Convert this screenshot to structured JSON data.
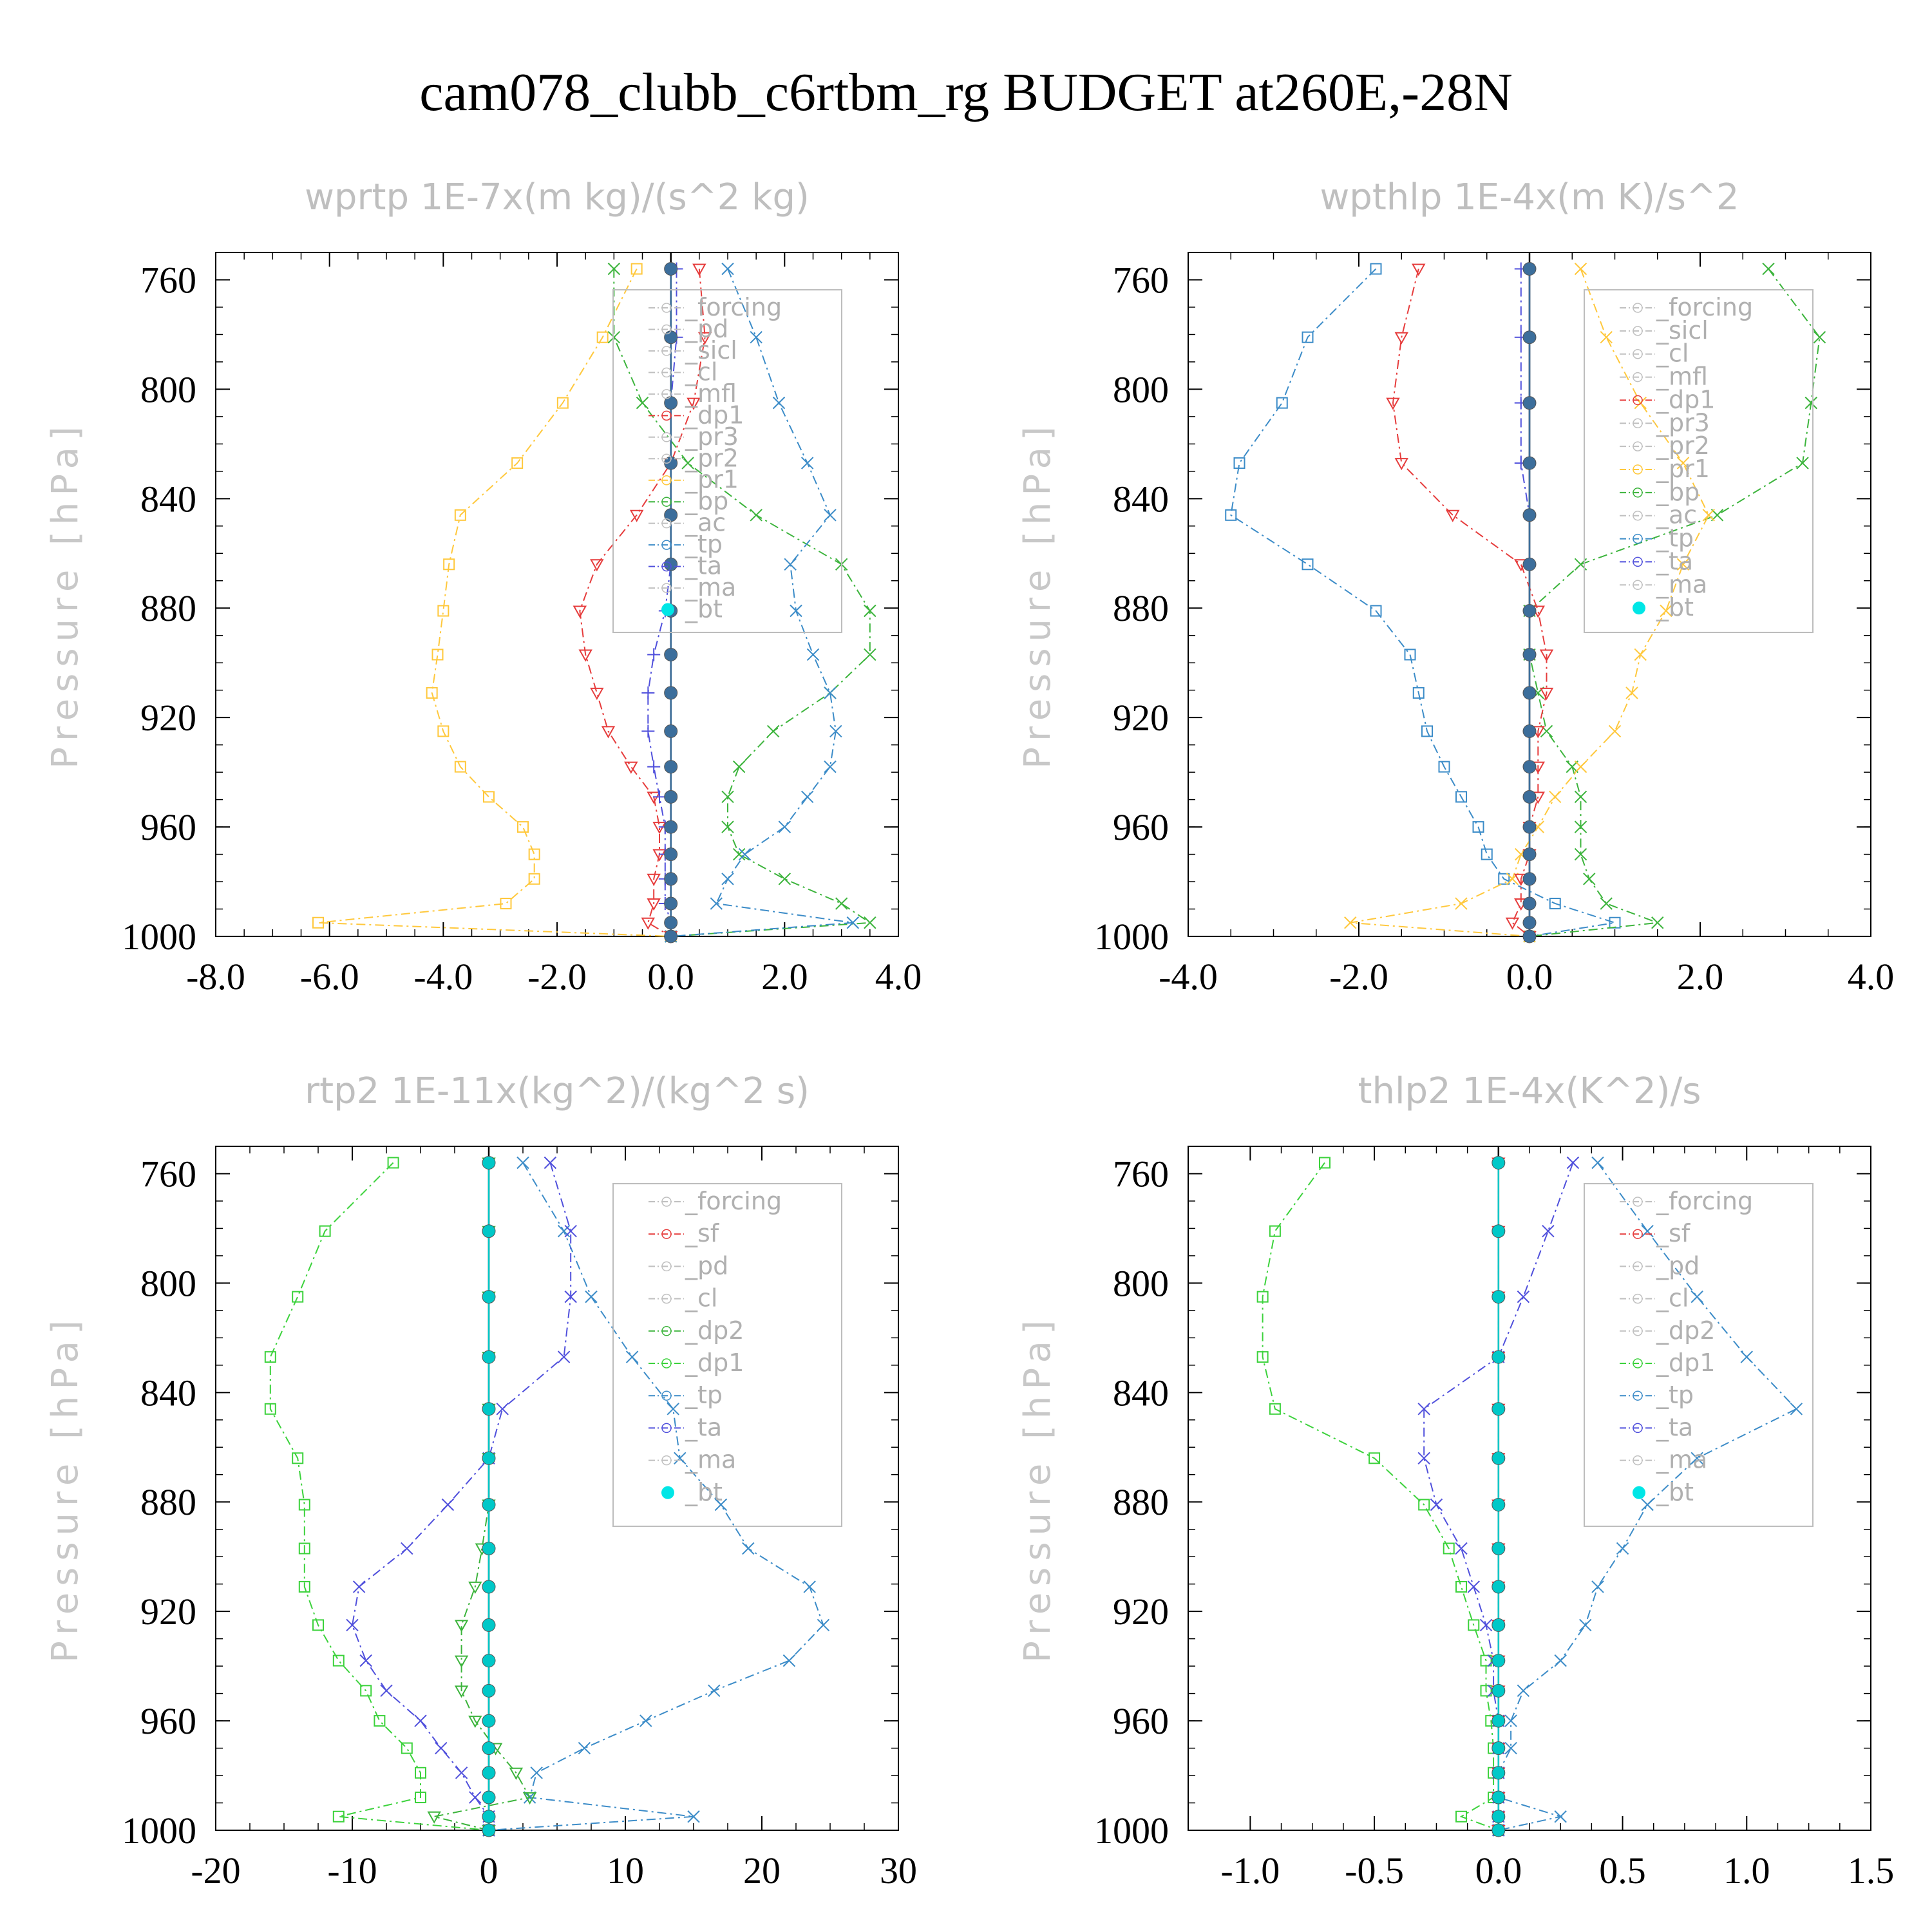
{
  "title": "cam078_clubb_c6rtbm_rg  BUDGET at260E,-28N",
  "ylabel": "Pressure [hPa]",
  "chart_data": [
    {
      "type": "line",
      "title": "wprtp  1E-7x(m kg)/(s^2 kg)",
      "ylabel": "Pressure [hPa]",
      "xlim": [
        -8,
        4
      ],
      "xticks": [
        "-8.0",
        "-6.0",
        "-4.0",
        "-2.0",
        "0.0",
        "2.0",
        "4.0"
      ],
      "xtick_values": [
        -8,
        -6,
        -4,
        -2,
        0,
        2,
        4
      ],
      "ylim": [
        750,
        1000
      ],
      "yticks": [
        "760",
        "800",
        "840",
        "880",
        "920",
        "960",
        "1000"
      ],
      "ytick_values": [
        760,
        800,
        840,
        880,
        920,
        960,
        1000
      ],
      "levels": [
        756,
        781,
        805,
        827,
        846,
        864,
        881,
        897,
        911,
        925,
        938,
        949,
        960,
        970,
        979,
        988,
        995,
        1000
      ],
      "legend": [
        "_forcing",
        "_pd",
        "_sicl",
        "_cl",
        "_mfl",
        "_dp1",
        "_pr3",
        "_pr2",
        "_pr1",
        "_bp",
        "_ac",
        "_tp",
        "_ta",
        "_ma",
        "_bt"
      ],
      "series": [
        {
          "name": "_pr1",
          "color": "#ffc83c",
          "values": [
            -0.6,
            -1.2,
            -1.9,
            -2.7,
            -3.7,
            -3.9,
            -4.0,
            -4.1,
            -4.2,
            -4.0,
            -3.7,
            -3.2,
            -2.6,
            -2.4,
            -2.4,
            -2.9,
            -6.2,
            0
          ]
        },
        {
          "name": "_bp",
          "color": "#3cb43c",
          "values": [
            -1.0,
            -1.0,
            -0.5,
            0.3,
            1.5,
            3.0,
            3.5,
            3.5,
            2.8,
            1.8,
            1.2,
            1.0,
            1.0,
            1.2,
            2.0,
            3.0,
            3.5,
            0
          ]
        },
        {
          "name": "_tp",
          "color": "#3c8cc8",
          "values": [
            1.0,
            1.5,
            1.9,
            2.4,
            2.8,
            2.1,
            2.2,
            2.5,
            2.8,
            2.9,
            2.8,
            2.4,
            2.0,
            1.3,
            1.0,
            0.8,
            3.2,
            0
          ]
        },
        {
          "name": "_dp1",
          "color": "#e63c3c",
          "values": [
            0.5,
            0.6,
            0.4,
            0.0,
            -0.6,
            -1.3,
            -1.6,
            -1.5,
            -1.3,
            -1.1,
            -0.7,
            -0.3,
            -0.2,
            -0.2,
            -0.3,
            -0.3,
            -0.4,
            0
          ]
        },
        {
          "name": "_ta",
          "color": "#5050dc",
          "values": [
            0.1,
            0.1,
            0.0,
            0.0,
            0.0,
            0.0,
            -0.1,
            -0.3,
            -0.4,
            -0.4,
            -0.3,
            -0.2,
            -0.1,
            -0.1,
            -0.1,
            -0.1,
            0.0,
            0
          ]
        },
        {
          "name": "_bt",
          "color": "#3c6e9b",
          "values": [
            0,
            0,
            0,
            0,
            0,
            0,
            0,
            0,
            0,
            0,
            0,
            0,
            0,
            0,
            0,
            0,
            0,
            0
          ]
        }
      ]
    },
    {
      "type": "line",
      "title": "wpthlp  1E-4x(m K)/s^2",
      "ylabel": "Pressure [hPa]",
      "xlim": [
        -4,
        4
      ],
      "xticks": [
        "-4.0",
        "-2.0",
        "0.0",
        "2.0",
        "4.0"
      ],
      "xtick_values": [
        -4,
        -2,
        0,
        2,
        4
      ],
      "ylim": [
        750,
        1000
      ],
      "yticks": [
        "760",
        "800",
        "840",
        "880",
        "920",
        "960",
        "1000"
      ],
      "ytick_values": [
        760,
        800,
        840,
        880,
        920,
        960,
        1000
      ],
      "levels": [
        756,
        781,
        805,
        827,
        846,
        864,
        881,
        897,
        911,
        925,
        938,
        949,
        960,
        970,
        979,
        988,
        995,
        1000
      ],
      "legend": [
        "_forcing",
        "_sicl",
        "_cl",
        "_mfl",
        "_dp1",
        "_pr3",
        "_pr2",
        "_pr1",
        "_bp",
        "_ac",
        "_tp",
        "_ta",
        "_ma",
        "_bt"
      ],
      "series": [
        {
          "name": "_tp",
          "color": "#3c8cc8",
          "values": [
            -1.8,
            -2.6,
            -2.9,
            -3.4,
            -3.5,
            -2.6,
            -1.8,
            -1.4,
            -1.3,
            -1.2,
            -1.0,
            -0.8,
            -0.6,
            -0.5,
            -0.3,
            0.3,
            1.0,
            0
          ]
        },
        {
          "name": "_bp",
          "color": "#3cb43c",
          "values": [
            2.8,
            3.4,
            3.3,
            3.2,
            2.2,
            0.6,
            0.0,
            0.0,
            0.1,
            0.2,
            0.5,
            0.6,
            0.6,
            0.6,
            0.7,
            0.9,
            1.5,
            0
          ]
        },
        {
          "name": "_pr1",
          "color": "#ffc83c",
          "values": [
            0.6,
            0.9,
            1.3,
            1.8,
            2.1,
            1.8,
            1.6,
            1.3,
            1.2,
            1.0,
            0.6,
            0.3,
            0.1,
            -0.1,
            -0.2,
            -0.8,
            -2.1,
            0
          ]
        },
        {
          "name": "_dp1",
          "color": "#e63c3c",
          "values": [
            -1.3,
            -1.5,
            -1.6,
            -1.5,
            -0.9,
            -0.1,
            0.1,
            0.2,
            0.2,
            0.1,
            0.1,
            0.1,
            0.0,
            0.0,
            -0.1,
            -0.1,
            -0.2,
            0
          ]
        },
        {
          "name": "_ta",
          "color": "#5050dc",
          "values": [
            -0.1,
            -0.1,
            -0.1,
            -0.1,
            0.0,
            0.0,
            0.0,
            0.0,
            0.0,
            0.0,
            0.0,
            0.0,
            0.0,
            0.0,
            0.0,
            0.0,
            0.0,
            0
          ]
        },
        {
          "name": "_bt",
          "color": "#3c6e9b",
          "values": [
            0,
            0,
            0,
            0,
            0,
            0,
            0,
            0,
            0,
            0,
            0,
            0,
            0,
            0,
            0,
            0,
            0,
            0
          ]
        }
      ]
    },
    {
      "type": "line",
      "title": "rtp2  1E-11x(kg^2)/(kg^2 s)",
      "ylabel": "Pressure [hPa]",
      "xlim": [
        -20,
        30
      ],
      "xticks": [
        "-20",
        "-10",
        "0",
        "10",
        "20",
        "30"
      ],
      "xtick_values": [
        -20,
        -10,
        0,
        10,
        20,
        30
      ],
      "ylim": [
        750,
        1000
      ],
      "yticks": [
        "760",
        "800",
        "840",
        "880",
        "920",
        "960",
        "1000"
      ],
      "ytick_values": [
        760,
        800,
        840,
        880,
        920,
        960,
        1000
      ],
      "levels": [
        756,
        781,
        805,
        827,
        846,
        864,
        881,
        897,
        911,
        925,
        938,
        949,
        960,
        970,
        979,
        988,
        995,
        1000
      ],
      "legend": [
        "_forcing",
        "_sf",
        "_pd",
        "_cl",
        "_dp2",
        "_dp1",
        "_tp",
        "_ta",
        "_ma",
        "_bt"
      ],
      "series": [
        {
          "name": "_dp1",
          "color": "#3cd23c",
          "values": [
            -7,
            -12,
            -14,
            -16,
            -16,
            -14,
            -13.5,
            -13.5,
            -13.5,
            -12.5,
            -11,
            -9,
            -8,
            -6,
            -5,
            -5,
            -11,
            0
          ]
        },
        {
          "name": "_tp",
          "color": "#3c8cc8",
          "values": [
            2.5,
            5.5,
            7.5,
            10.5,
            13.5,
            14.0,
            17,
            19,
            23.5,
            24.5,
            22,
            16.5,
            11.5,
            7,
            3.5,
            3,
            15,
            0
          ]
        },
        {
          "name": "_ta",
          "color": "#5050dc",
          "values": [
            4.5,
            6,
            6,
            5.5,
            1,
            0,
            -3,
            -6,
            -9.5,
            -10,
            -9,
            -7.5,
            -5,
            -3.5,
            -2,
            -1,
            0,
            0
          ]
        },
        {
          "name": "_dp2",
          "color": "#3cb43c",
          "values": [
            0,
            0,
            0,
            0,
            0,
            0,
            0,
            -0.5,
            -1,
            -2,
            -2,
            -2,
            -1,
            0.5,
            2,
            3,
            -4,
            0
          ]
        },
        {
          "name": "_sf",
          "color": "#e63c3c",
          "values": [
            0,
            0,
            0,
            0,
            0,
            0,
            0,
            0,
            0,
            0,
            0,
            0,
            0,
            0,
            0,
            0,
            0,
            0
          ]
        },
        {
          "name": "_bt",
          "color": "#00c8c8",
          "values": [
            0,
            0,
            0,
            0,
            0,
            0,
            0,
            0,
            0,
            0,
            0,
            0,
            0,
            0,
            0,
            0,
            0,
            0
          ]
        }
      ]
    },
    {
      "type": "line",
      "title": "thlp2  1E-4x(K^2)/s",
      "ylabel": "Pressure [hPa]",
      "xlim": [
        -1.25,
        1.5
      ],
      "xticks": [
        "-1.0",
        "-0.5",
        "0.0",
        "0.5",
        "1.0",
        "1.5"
      ],
      "xtick_values": [
        -1.0,
        -0.5,
        0.0,
        0.5,
        1.0,
        1.5
      ],
      "ylim": [
        750,
        1000
      ],
      "yticks": [
        "760",
        "800",
        "840",
        "880",
        "920",
        "960",
        "1000"
      ],
      "ytick_values": [
        760,
        800,
        840,
        880,
        920,
        960,
        1000
      ],
      "levels": [
        756,
        781,
        805,
        827,
        846,
        864,
        881,
        897,
        911,
        925,
        938,
        949,
        960,
        970,
        979,
        988,
        995,
        1000
      ],
      "legend": [
        "_forcing",
        "_sf",
        "_pd",
        "_cl",
        "_dp2",
        "_dp1",
        "_tp",
        "_ta",
        "_ma",
        "_bt"
      ],
      "series": [
        {
          "name": "_dp1",
          "color": "#3cd23c",
          "values": [
            -0.7,
            -0.9,
            -0.95,
            -0.95,
            -0.9,
            -0.5,
            -0.3,
            -0.2,
            -0.15,
            -0.1,
            -0.05,
            -0.05,
            -0.03,
            -0.02,
            -0.02,
            -0.02,
            -0.15,
            0
          ]
        },
        {
          "name": "_tp",
          "color": "#3c8cc8",
          "values": [
            0.4,
            0.6,
            0.8,
            1.0,
            1.2,
            0.8,
            0.6,
            0.5,
            0.4,
            0.35,
            0.25,
            0.1,
            0.05,
            0.05,
            0.0,
            0.0,
            0.25,
            0
          ]
        },
        {
          "name": "_ta",
          "color": "#5050dc",
          "values": [
            0.3,
            0.2,
            0.1,
            0.0,
            -0.3,
            -0.3,
            -0.25,
            -0.15,
            -0.1,
            -0.05,
            -0.02,
            -0.02,
            0,
            0,
            0,
            0,
            0,
            0
          ]
        },
        {
          "name": "_sf",
          "color": "#e63c3c",
          "values": [
            0,
            0,
            0,
            0,
            0,
            0,
            0,
            0,
            0,
            0,
            0,
            0,
            0,
            0,
            0,
            0,
            0,
            0
          ]
        },
        {
          "name": "_bt",
          "color": "#00c8c8",
          "values": [
            0,
            0,
            0,
            0,
            0,
            0,
            0,
            0,
            0,
            0,
            0,
            0,
            0,
            0,
            0,
            0,
            0,
            0
          ]
        }
      ]
    }
  ]
}
